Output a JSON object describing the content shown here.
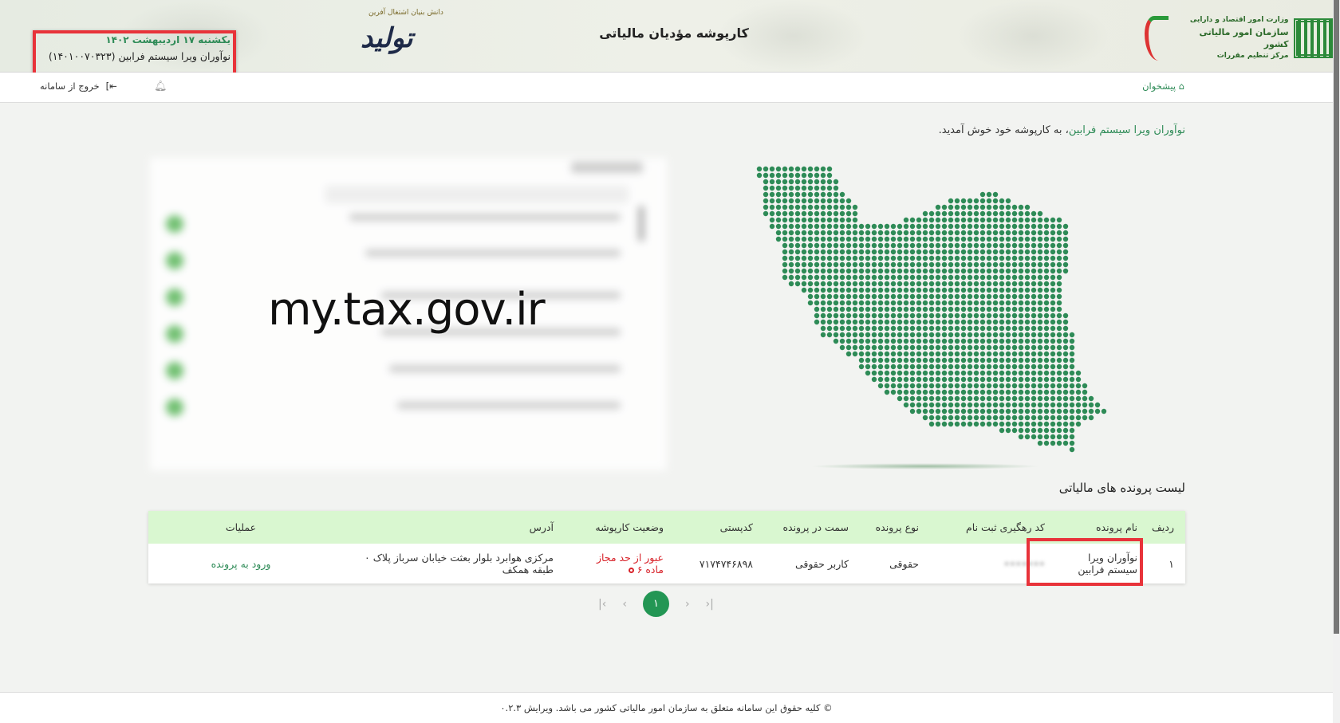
{
  "header": {
    "title": "کارپوشه مؤدیان مالیاتی",
    "date": "یکشنبه ۱۷ اردیبهشت ۱۴۰۲",
    "user": "نوآوران ویرا سیستم فرابین (۱۴۰۱۰۰۷۰۳۲۳)",
    "logo_org": "سازمان امور مالیاتی کشور",
    "logo_ministry": "وزارت امور اقتصاد و دارایی",
    "logo_sub": "مرکز تنظیم مقررات",
    "tolid_logo": "تولید",
    "tolid_sub": "دانش بنیان اشتغال آفرین"
  },
  "nav": {
    "logout": "خروج از سامانه",
    "home": "پیشخوان"
  },
  "welcome": {
    "name": "نوآوران ویرا سیستم فرابین",
    "rest": "، به کارپوشه خود خوش آمدید."
  },
  "watermark": "my.tax.gov.ir",
  "list": {
    "title": "لیست پرونده های مالیاتی",
    "columns": [
      "ردیف",
      "نام پرونده",
      "کد رهگیری ثبت نام",
      "نوع پرونده",
      "سمت در پرونده",
      "کدپستی",
      "وضعیت کارپوشه",
      "آدرس",
      "عملیات"
    ],
    "rows": [
      {
        "index": "۱",
        "name": "نوآوران ویرا سیستم فرابین",
        "tracking": "•••••••",
        "type": "حقوقی",
        "role": "کاربر حقوقی",
        "postal": "۷۱۷۴۷۴۶۸۹۸",
        "status": "عبور از حد مجاز ماده ۶",
        "address": "مرکزی هوابرد بلوار بعثت خیابان سرباز پلاک ۰ طبقه همکف",
        "action": "ورود به پرونده"
      }
    ]
  },
  "pagination": {
    "current": "۱"
  },
  "footer": "© کلیه حقوق این سامانه متعلق به سازمان امور مالیاتی کشور می باشد. ویرایش ۰.۲.۳",
  "colors": {
    "accent": "#2e8b57",
    "header_row": "#d9f7d0",
    "status_red": "#d8232a",
    "highlight": "#e8333a"
  }
}
